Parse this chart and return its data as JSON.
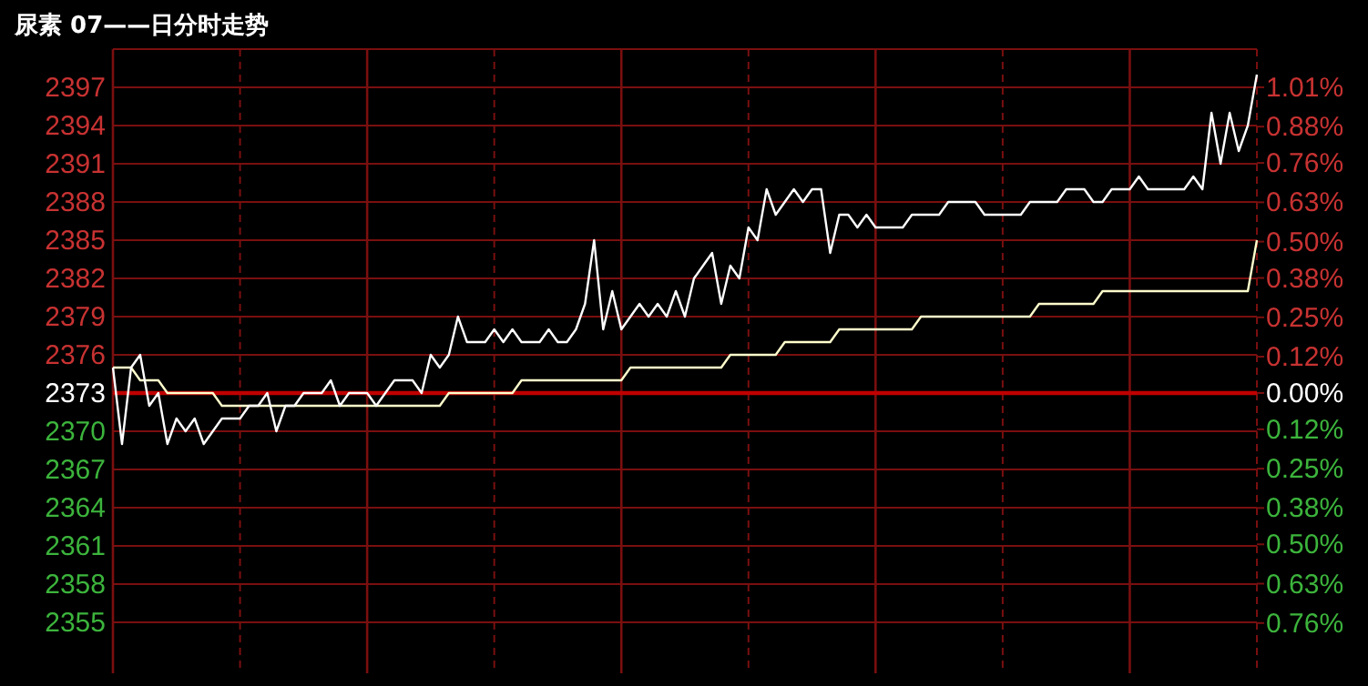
{
  "chart_data": {
    "type": "line",
    "title": "尿素 07——日分时走势",
    "categories": [
      null,
      null,
      null,
      null,
      null,
      null,
      null,
      null,
      null,
      null,
      null,
      null,
      null,
      null,
      null,
      null,
      null,
      null,
      null,
      null,
      null,
      null,
      null,
      null,
      null,
      null,
      null,
      null,
      null,
      null,
      null,
      null,
      null,
      null,
      null,
      null,
      null,
      null,
      null,
      null,
      null,
      null,
      null,
      null,
      null,
      null,
      null,
      null,
      null,
      null,
      null,
      null,
      null,
      null,
      null,
      null,
      null,
      null,
      null,
      null,
      null,
      null,
      null,
      null,
      null,
      null,
      null,
      null,
      null,
      null,
      null,
      null,
      null,
      null,
      null,
      null,
      null,
      null,
      null,
      null,
      null,
      null,
      null,
      null,
      null,
      null,
      null,
      null,
      null,
      null,
      null,
      null,
      null,
      null,
      null,
      null,
      null,
      null,
      null,
      null,
      null,
      null,
      null,
      null,
      null,
      null,
      null,
      null,
      null,
      null,
      null,
      null,
      null,
      null,
      null,
      null,
      null,
      null,
      null,
      null,
      null,
      null,
      null,
      null,
      null,
      null,
      null
    ],
    "series": [
      {
        "color": "#ffffff",
        "values": [
          2375,
          2369,
          2375,
          2376,
          2372,
          2373,
          2369,
          2371,
          2370,
          2371,
          2369,
          2370,
          2371,
          2371,
          2371,
          2372,
          2372,
          2373,
          2370,
          2372,
          2372,
          2373,
          2373,
          2373,
          2374,
          2372,
          2373,
          2373,
          2373,
          2372,
          2373,
          2374,
          2374,
          2374,
          2373,
          2376,
          2375,
          2376,
          2379,
          2377,
          2377,
          2377,
          2378,
          2377,
          2378,
          2377,
          2377,
          2377,
          2378,
          2377,
          2377,
          2378,
          2380,
          2385,
          2378,
          2381,
          2378,
          2379,
          2380,
          2379,
          2380,
          2379,
          2381,
          2379,
          2382,
          2383,
          2384,
          2380,
          2383,
          2382,
          2386,
          2385,
          2389,
          2387,
          2388,
          2389,
          2388,
          2389,
          2389,
          2384,
          2387,
          2387,
          2386,
          2387,
          2386,
          2386,
          2386,
          2386,
          2387,
          2387,
          2387,
          2387,
          2388,
          2388,
          2388,
          2388,
          2387,
          2387,
          2387,
          2387,
          2387,
          2388,
          2388,
          2388,
          2388,
          2389,
          2389,
          2389,
          2388,
          2388,
          2389,
          2389,
          2389,
          2390,
          2389,
          2389,
          2389,
          2389,
          2389,
          2390,
          2389,
          2395,
          2391,
          2395,
          2392,
          2394,
          2398
        ]
      },
      {
        "color": "#ffffcc",
        "values": [
          2375,
          2375,
          2375,
          2374,
          2374,
          2374,
          2373,
          2373,
          2373,
          2373,
          2373,
          2373,
          2372,
          2372,
          2372,
          2372,
          2372,
          2372,
          2372,
          2372,
          2372,
          2372,
          2372,
          2372,
          2372,
          2372,
          2372,
          2372,
          2372,
          2372,
          2372,
          2372,
          2372,
          2372,
          2372,
          2372,
          2372,
          2373,
          2373,
          2373,
          2373,
          2373,
          2373,
          2373,
          2373,
          2374,
          2374,
          2374,
          2374,
          2374,
          2374,
          2374,
          2374,
          2374,
          2374,
          2374,
          2374,
          2375,
          2375,
          2375,
          2375,
          2375,
          2375,
          2375,
          2375,
          2375,
          2375,
          2375,
          2376,
          2376,
          2376,
          2376,
          2376,
          2376,
          2377,
          2377,
          2377,
          2377,
          2377,
          2377,
          2378,
          2378,
          2378,
          2378,
          2378,
          2378,
          2378,
          2378,
          2378,
          2379,
          2379,
          2379,
          2379,
          2379,
          2379,
          2379,
          2379,
          2379,
          2379,
          2379,
          2379,
          2379,
          2380,
          2380,
          2380,
          2380,
          2380,
          2380,
          2380,
          2381,
          2381,
          2381,
          2381,
          2381,
          2381,
          2381,
          2381,
          2381,
          2381,
          2381,
          2381,
          2381,
          2381,
          2381,
          2381,
          2381,
          2385
        ]
      }
    ],
    "ylim": [
      2351,
      2400
    ],
    "yticks": [
      2397,
      2394,
      2391,
      2388,
      2385,
      2382,
      2379,
      2376,
      2373,
      2370,
      2367,
      2364,
      2361,
      2358,
      2355
    ],
    "y2lim": [
      -0.926,
      1.136
    ],
    "y2ticks": [
      {
        "value": 1.01,
        "label": "1.01%"
      },
      {
        "value": 0.88,
        "label": "0.88%"
      },
      {
        "value": 0.76,
        "label": "0.76%"
      },
      {
        "value": 0.63,
        "label": "0.63%"
      },
      {
        "value": 0.5,
        "label": "0.50%"
      },
      {
        "value": 0.38,
        "label": "0.38%"
      },
      {
        "value": 0.25,
        "label": "0.25%"
      },
      {
        "value": 0.12,
        "label": "0.12%"
      },
      {
        "value": 0,
        "label": "0.00%"
      },
      {
        "value": -0.12,
        "label": "0.12%"
      },
      {
        "value": -0.25,
        "label": "0.25%"
      },
      {
        "value": -0.38,
        "label": "0.38%"
      },
      {
        "value": -0.5,
        "label": "0.50%"
      },
      {
        "value": -0.63,
        "label": "0.63%"
      },
      {
        "value": -0.76,
        "label": "0.76%"
      }
    ],
    "ref_lines": [
      {
        "axis": "y",
        "value": 2373,
        "color": "#c00000"
      }
    ],
    "grid": true,
    "marker": "none",
    "line_style": "solid"
  }
}
